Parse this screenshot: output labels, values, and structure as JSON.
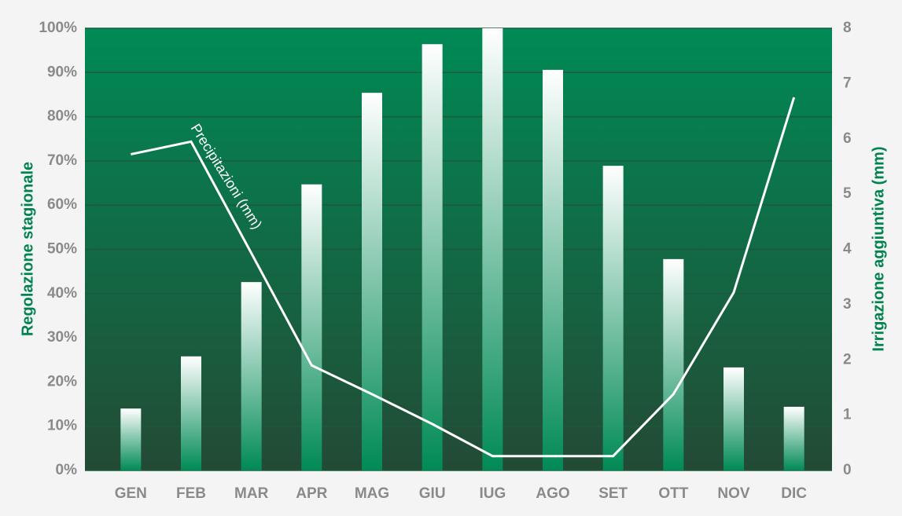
{
  "chart_data": {
    "type": "bar",
    "categories": [
      "GEN",
      "FEB",
      "MAR",
      "APR",
      "MAG",
      "GIU",
      "IUG",
      "AGO",
      "SET",
      "OTT",
      "NOV",
      "DIC"
    ],
    "y_label": "Regolazione stagionale",
    "y2_label": "Irrigazione aggiuntiva (mm)",
    "ylim": [
      0,
      100
    ],
    "yticks": [
      {
        "value": 0,
        "label": "0%"
      },
      {
        "value": 10,
        "label": "10%"
      },
      {
        "value": 20,
        "label": "20%"
      },
      {
        "value": 30,
        "label": "30%"
      },
      {
        "value": 40,
        "label": "40%"
      },
      {
        "value": 50,
        "label": "50%"
      },
      {
        "value": 60,
        "label": "60%"
      },
      {
        "value": 70,
        "label": "70%"
      },
      {
        "value": 80,
        "label": "80%"
      },
      {
        "value": 90,
        "label": "90%"
      },
      {
        "value": 100,
        "label": "100%"
      }
    ],
    "y2lim": [
      0,
      8
    ],
    "y2ticks": [
      0,
      1,
      2,
      3,
      4,
      5,
      6,
      7,
      8
    ],
    "grid": true,
    "series": [
      {
        "type": "bar",
        "color": "#008a55",
        "values": [
          14.0,
          25.8,
          42.6,
          64.7,
          85.4,
          96.4,
          100,
          90.6,
          68.9,
          47.8,
          23.3,
          14.4
        ]
      },
      {
        "type": "line",
        "name": "Precipitazioni (mm)",
        "axis": "y2",
        "color": "#ffffff",
        "values": [
          5.72,
          5.95,
          3.93,
          1.9,
          1.38,
          0.84,
          0.26,
          0.26,
          0.26,
          1.38,
          3.22,
          6.75
        ]
      }
    ]
  }
}
